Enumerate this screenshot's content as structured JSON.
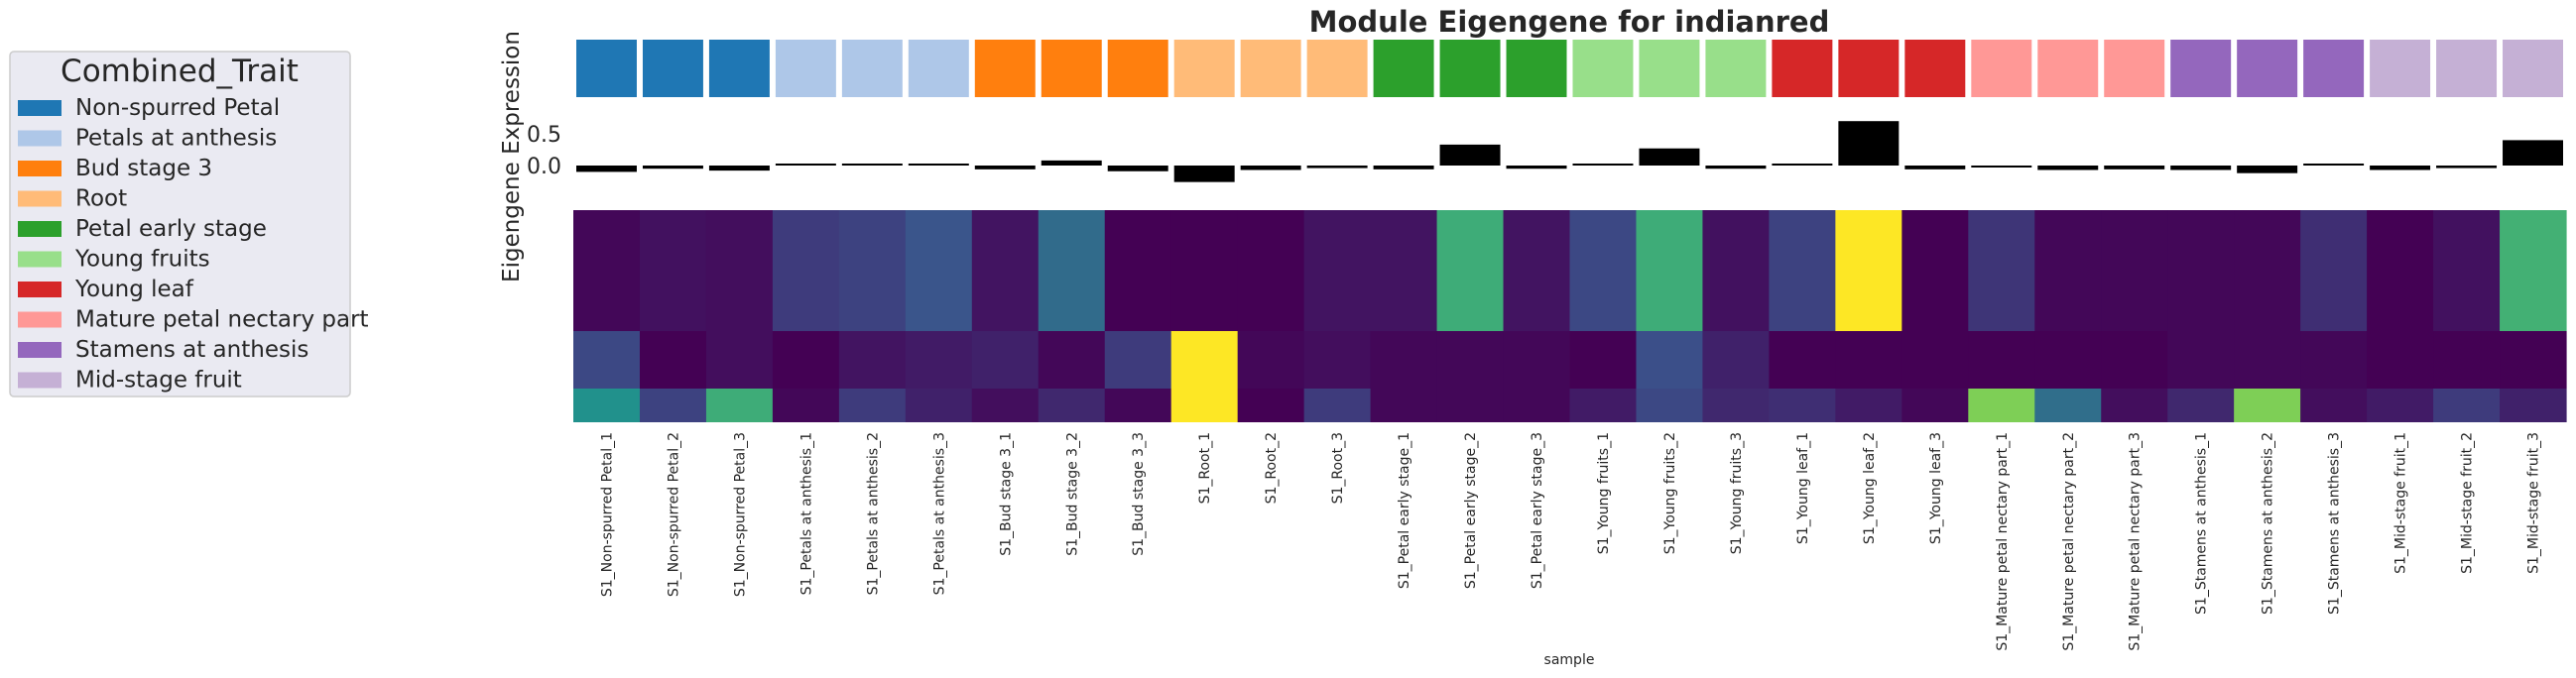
{
  "chart_data": {
    "type": "heatmap",
    "title": "Module Eigengene for indianred",
    "xlabel": "sample",
    "ylabel": "Eigengene Expression",
    "eigengene_yticks": [
      0.5,
      0.0
    ],
    "legend": {
      "title": "Combined_Trait",
      "placement": "left",
      "entries": [
        {
          "label": "Non-spurred Petal",
          "color": "#1f77b4"
        },
        {
          "label": "Petals at anthesis",
          "color": "#aec7e8"
        },
        {
          "label": "Bud stage 3",
          "color": "#ff7f0e"
        },
        {
          "label": "Root",
          "color": "#ffbb78"
        },
        {
          "label": "Petal early stage",
          "color": "#2ca02c"
        },
        {
          "label": "Young fruits",
          "color": "#98df8a"
        },
        {
          "label": "Young leaf",
          "color": "#d62728"
        },
        {
          "label": "Mature petal nectary part",
          "color": "#ff9896"
        },
        {
          "label": "Stamens at anthesis",
          "color": "#9467bd"
        },
        {
          "label": "Mid-stage fruit",
          "color": "#c5b0d5"
        }
      ]
    },
    "samples": [
      {
        "label": "S1_Non-spurred Petal_1",
        "trait": 0,
        "eigengene": -0.1
      },
      {
        "label": "S1_Non-spurred Petal_2",
        "trait": 0,
        "eigengene": -0.05
      },
      {
        "label": "S1_Non-spurred Petal_3",
        "trait": 0,
        "eigengene": -0.08
      },
      {
        "label": "S1_Petals at anthesis_1",
        "trait": 1,
        "eigengene": 0.0
      },
      {
        "label": "S1_Petals at anthesis_2",
        "trait": 1,
        "eigengene": 0.0
      },
      {
        "label": "S1_Petals at anthesis_3",
        "trait": 1,
        "eigengene": 0.03
      },
      {
        "label": "S1_Bud stage 3_1",
        "trait": 2,
        "eigengene": -0.06
      },
      {
        "label": "S1_Bud stage 3_2",
        "trait": 2,
        "eigengene": 0.08
      },
      {
        "label": "S1_Bud stage 3_3",
        "trait": 2,
        "eigengene": -0.09
      },
      {
        "label": "S1_Root_1",
        "trait": 3,
        "eigengene": -0.26
      },
      {
        "label": "S1_Root_2",
        "trait": 3,
        "eigengene": -0.07
      },
      {
        "label": "S1_Root_3",
        "trait": 3,
        "eigengene": -0.04
      },
      {
        "label": "S1_Petal early stage_1",
        "trait": 4,
        "eigengene": -0.06
      },
      {
        "label": "S1_Petal early stage_2",
        "trait": 4,
        "eigengene": 0.33
      },
      {
        "label": "S1_Petal early stage_3",
        "trait": 4,
        "eigengene": -0.05
      },
      {
        "label": "S1_Young fruits_1",
        "trait": 5,
        "eigengene": 0.02
      },
      {
        "label": "S1_Young fruits_2",
        "trait": 5,
        "eigengene": 0.27
      },
      {
        "label": "S1_Young fruits_3",
        "trait": 5,
        "eigengene": -0.05
      },
      {
        "label": "S1_Young leaf_1",
        "trait": 6,
        "eigengene": 0.02
      },
      {
        "label": "S1_Young leaf_2",
        "trait": 6,
        "eigengene": 0.7
      },
      {
        "label": "S1_Young leaf_3",
        "trait": 6,
        "eigengene": -0.06
      },
      {
        "label": "S1_Mature petal nectary part_1",
        "trait": 7,
        "eigengene": -0.02
      },
      {
        "label": "S1_Mature petal nectary part_2",
        "trait": 7,
        "eigengene": -0.07
      },
      {
        "label": "S1_Mature petal nectary part_3",
        "trait": 7,
        "eigengene": -0.06
      },
      {
        "label": "S1_Stamens at anthesis_1",
        "trait": 8,
        "eigengene": -0.07
      },
      {
        "label": "S1_Stamens at anthesis_2",
        "trait": 8,
        "eigengene": -0.12
      },
      {
        "label": "S1_Stamens at anthesis_3",
        "trait": 8,
        "eigengene": 0.0
      },
      {
        "label": "S1_Mid-stage fruit_1",
        "trait": 9,
        "eigengene": -0.07
      },
      {
        "label": "S1_Mid-stage fruit_2",
        "trait": 9,
        "eigengene": -0.04
      },
      {
        "label": "S1_Mid-stage fruit_3",
        "trait": 9,
        "eigengene": 0.4
      }
    ],
    "heatmap_blocks": [
      {
        "name": "upper",
        "values": [
          0.02,
          0.05,
          0.04,
          0.18,
          0.2,
          0.26,
          0.06,
          0.35,
          0.0,
          0.0,
          0.0,
          0.06,
          0.06,
          0.62,
          0.06,
          0.22,
          0.62,
          0.05,
          0.2,
          1.0,
          0.0,
          0.16,
          0.02,
          0.02,
          0.02,
          0.02,
          0.14,
          0.0,
          0.05,
          0.64
        ]
      },
      {
        "name": "middle",
        "values": [
          0.22,
          0.0,
          0.04,
          0.0,
          0.06,
          0.08,
          0.1,
          0.02,
          0.18,
          1.0,
          0.02,
          0.04,
          0.02,
          0.02,
          0.02,
          0.0,
          0.24,
          0.1,
          0.0,
          0.0,
          0.0,
          0.0,
          0.0,
          0.0,
          0.02,
          0.02,
          0.02,
          0.0,
          0.0,
          0.0
        ]
      },
      {
        "name": "lower",
        "values": [
          0.5,
          0.2,
          0.62,
          0.02,
          0.18,
          0.1,
          0.04,
          0.12,
          0.02,
          1.0,
          0.0,
          0.18,
          0.02,
          0.02,
          0.02,
          0.08,
          0.22,
          0.12,
          0.14,
          0.08,
          0.02,
          0.8,
          0.36,
          0.04,
          0.12,
          0.8,
          0.04,
          0.08,
          0.18,
          0.1
        ]
      }
    ]
  }
}
